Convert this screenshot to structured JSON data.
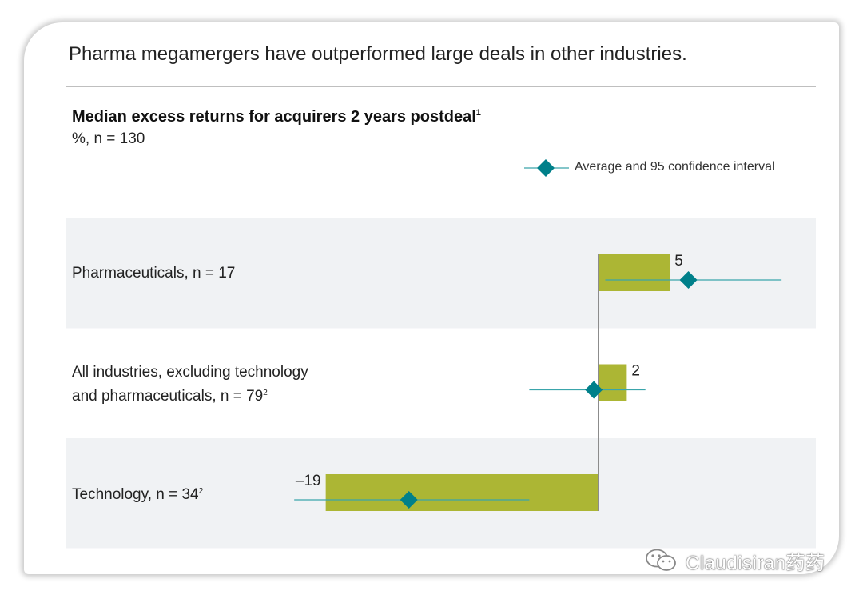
{
  "headline": "Pharma megamergers have outperformed large deals in other industries.",
  "legend": {
    "label": "Average and 95 confidence interval",
    "icon": "diamond-line-icon"
  },
  "watermark": {
    "text": "Claudisiran药药",
    "icon": "wechat-icon"
  },
  "colors": {
    "bar": "#acb634",
    "marker": "#00808a",
    "ci_line": "#3aa5ab",
    "band": "#f0f2f4",
    "axis": "#8c8c8c"
  },
  "chart_data": {
    "type": "bar",
    "orientation": "horizontal",
    "title": "Median excess returns for acquirers 2 years postdeal",
    "title_footnote": "1",
    "subtitle": "%, n = 130",
    "categories": [
      {
        "name": "Pharmaceuticals, n = 17",
        "lines": [
          "Pharmaceuticals, n = 17"
        ],
        "footnote": ""
      },
      {
        "name": "All industries, excluding technology and pharmaceuticals, n = 79",
        "lines": [
          "All industries, excluding technology",
          "and pharmaceuticals, n = 79"
        ],
        "footnote": "2"
      },
      {
        "name": "Technology, n = 34",
        "lines": [
          "Technology, n = 34"
        ],
        "footnote": "2"
      }
    ],
    "series": [
      {
        "values": [
          5,
          2,
          -19
        ]
      }
    ],
    "value_labels": [
      "5",
      "2",
      "–19"
    ],
    "average": [
      6.3,
      -0.3,
      -13.2
    ],
    "ci_low": [
      0.5,
      -4.8,
      -21.2
    ],
    "ci_high": [
      12.8,
      3.3,
      -4.8
    ],
    "xlim": [
      -22,
      15
    ],
    "grid": false,
    "legend_position": "top-right"
  }
}
